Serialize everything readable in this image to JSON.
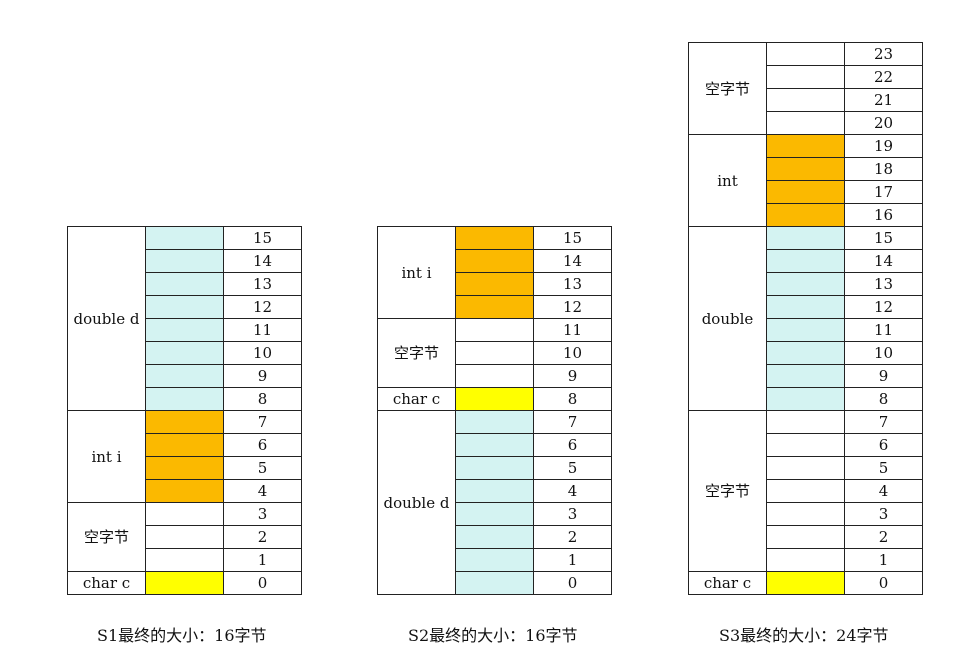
{
  "colors": {
    "double": "#d4f3f2",
    "int": "#fbb900",
    "char": "#ffff00",
    "padding": "#ffffff"
  },
  "structs": [
    {
      "id": "s1",
      "caption": "S1最终的大小：16字节",
      "fields": [
        {
          "label": "double d",
          "type": "double",
          "offsets": [
            15,
            14,
            13,
            12,
            11,
            10,
            9,
            8
          ]
        },
        {
          "label": "int i",
          "type": "int",
          "offsets": [
            7,
            6,
            5,
            4
          ]
        },
        {
          "label": "空字节",
          "type": "padding",
          "offsets": [
            3,
            2,
            1
          ]
        },
        {
          "label": "char c",
          "type": "char",
          "offsets": [
            0
          ]
        }
      ]
    },
    {
      "id": "s2",
      "caption": "S2最终的大小：16字节",
      "fields": [
        {
          "label": "int i",
          "type": "int",
          "offsets": [
            15,
            14,
            13,
            12
          ]
        },
        {
          "label": "空字节",
          "type": "padding",
          "offsets": [
            11,
            10,
            9
          ]
        },
        {
          "label": "char c",
          "type": "char",
          "offsets": [
            8
          ]
        },
        {
          "label": "double d",
          "type": "double",
          "offsets": [
            7,
            6,
            5,
            4,
            3,
            2,
            1,
            0
          ]
        }
      ]
    },
    {
      "id": "s3",
      "caption": "S3最终的大小：24字节",
      "fields": [
        {
          "label": "空字节",
          "type": "padding",
          "offsets": [
            23,
            22,
            21,
            20
          ]
        },
        {
          "label": "int",
          "type": "int",
          "offsets": [
            19,
            18,
            17,
            16
          ]
        },
        {
          "label": "double",
          "type": "double",
          "offsets": [
            15,
            14,
            13,
            12,
            11,
            10,
            9,
            8
          ]
        },
        {
          "label": "空字节",
          "type": "padding",
          "offsets": [
            7,
            6,
            5,
            4,
            3,
            2,
            1
          ]
        },
        {
          "label": "char c",
          "type": "char",
          "offsets": [
            0
          ]
        }
      ]
    }
  ]
}
